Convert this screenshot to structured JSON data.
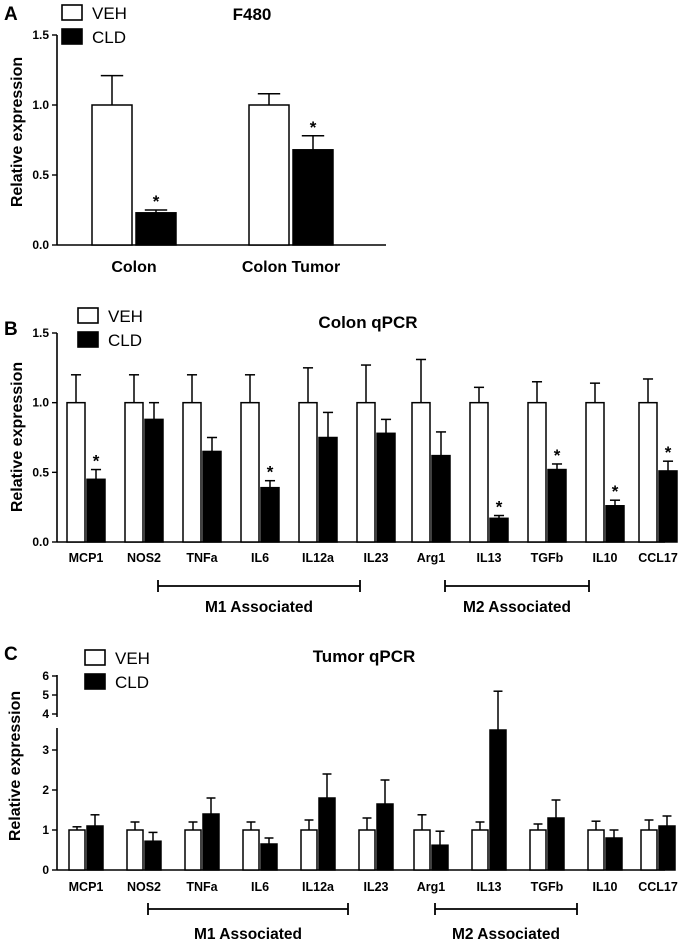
{
  "chart_data": [
    {
      "panel": "A",
      "type": "bar",
      "title": "F480",
      "ylabel": "Relative expression",
      "xlabel": "",
      "ylim": [
        0,
        1.5
      ],
      "yticks": [
        "0.0",
        "0.5",
        "1.0",
        "1.5"
      ],
      "categories": [
        "Colon",
        "Colon Tumor"
      ],
      "series": [
        {
          "name": "VEH",
          "color": "#ffffff",
          "values": [
            1.0,
            1.0
          ],
          "errors": [
            0.21,
            0.08
          ],
          "significant": [
            false,
            false
          ]
        },
        {
          "name": "CLD",
          "color": "#000000",
          "values": [
            0.23,
            0.68
          ],
          "errors": [
            0.02,
            0.1
          ],
          "significant": [
            true,
            true
          ]
        }
      ],
      "significance_marker": "*",
      "legend": [
        "VEH",
        "CLD"
      ]
    },
    {
      "panel": "B",
      "type": "bar",
      "title": "Colon qPCR",
      "ylabel": "Relative expression",
      "xlabel": "",
      "ylim": [
        0,
        1.5
      ],
      "yticks": [
        "0.0",
        "0.5",
        "1.0",
        "1.5"
      ],
      "categories": [
        "MCP1",
        "NOS2",
        "TNFa",
        "IL6",
        "IL12a",
        "IL23",
        "Arg1",
        "IL13",
        "TGFb",
        "IL10",
        "CCL17"
      ],
      "series": [
        {
          "name": "VEH",
          "color": "#ffffff",
          "values": [
            1,
            1,
            1,
            1,
            1,
            1,
            1,
            1,
            1,
            1,
            1
          ],
          "errors": [
            0.2,
            0.2,
            0.2,
            0.2,
            0.25,
            0.27,
            0.31,
            0.11,
            0.15,
            0.14,
            0.17
          ],
          "significant": [
            false,
            false,
            false,
            false,
            false,
            false,
            false,
            false,
            false,
            false,
            false
          ]
        },
        {
          "name": "CLD",
          "color": "#000000",
          "values": [
            0.45,
            0.88,
            0.65,
            0.39,
            0.75,
            0.78,
            0.62,
            0.17,
            0.52,
            0.26,
            0.51
          ],
          "errors": [
            0.07,
            0.12,
            0.1,
            0.05,
            0.18,
            0.1,
            0.17,
            0.02,
            0.04,
            0.04,
            0.07
          ],
          "significant": [
            true,
            false,
            false,
            true,
            false,
            false,
            false,
            true,
            true,
            true,
            true
          ]
        }
      ],
      "significance_marker": "*",
      "legend": [
        "VEH",
        "CLD"
      ],
      "groups": [
        {
          "label": "M1 Associated",
          "from": "NOS2",
          "to": "IL23"
        },
        {
          "label": "M2  Associated",
          "from": "Arg1",
          "to": "IL10"
        }
      ]
    },
    {
      "panel": "C",
      "type": "bar",
      "title": "Tumor qPCR",
      "ylabel": "Relative expression",
      "xlabel": "",
      "ylim": [
        0,
        6
      ],
      "axis_break": [
        3.5,
        4
      ],
      "yticks": [
        "0",
        "1",
        "2",
        "3",
        "4",
        "5",
        "6"
      ],
      "categories": [
        "MCP1",
        "NOS2",
        "TNFa",
        "IL6",
        "IL12a",
        "IL23",
        "Arg1",
        "IL13",
        "TGFb",
        "IL10",
        "CCL17"
      ],
      "series": [
        {
          "name": "VEH",
          "color": "#ffffff",
          "values": [
            1,
            1,
            1,
            1,
            1,
            1,
            1,
            1,
            1,
            1,
            1
          ],
          "errors": [
            0.08,
            0.2,
            0.2,
            0.2,
            0.25,
            0.3,
            0.38,
            0.2,
            0.15,
            0.22,
            0.25
          ],
          "significant": [
            false,
            false,
            false,
            false,
            false,
            false,
            false,
            false,
            false,
            false,
            false
          ]
        },
        {
          "name": "CLD",
          "color": "#000000",
          "values": [
            1.1,
            0.72,
            1.4,
            0.65,
            1.8,
            1.65,
            0.62,
            3.5,
            1.3,
            0.8,
            1.1
          ],
          "errors": [
            0.28,
            0.22,
            0.4,
            0.15,
            0.6,
            0.6,
            0.35,
            1.7,
            0.45,
            0.2,
            0.25
          ],
          "significant": [
            false,
            false,
            false,
            false,
            false,
            false,
            false,
            false,
            false,
            false,
            false
          ]
        }
      ],
      "legend": [
        "VEH",
        "CLD"
      ],
      "groups": [
        {
          "label": "M1 Associated",
          "from": "NOS2",
          "to": "IL23"
        },
        {
          "label": "M2  Associated",
          "from": "Arg1",
          "to": "IL10"
        }
      ]
    }
  ]
}
